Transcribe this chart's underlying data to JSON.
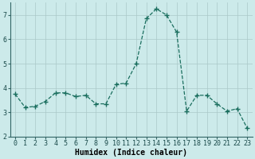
{
  "x": [
    0,
    1,
    2,
    3,
    4,
    5,
    6,
    7,
    8,
    9,
    10,
    11,
    12,
    13,
    14,
    15,
    16,
    17,
    18,
    19,
    20,
    21,
    22,
    23
  ],
  "y": [
    3.75,
    3.2,
    3.25,
    3.45,
    3.8,
    3.8,
    3.65,
    3.7,
    3.35,
    3.35,
    4.15,
    4.2,
    5.0,
    6.85,
    7.25,
    7.0,
    6.3,
    3.05,
    3.7,
    3.7,
    3.35,
    3.05,
    3.15,
    2.35
  ],
  "line_color": "#1a6e5e",
  "marker": "+",
  "marker_size": 4,
  "linewidth": 0.9,
  "background_color": "#cceaea",
  "grid_color": "#aac8c8",
  "xlabel": "Humidex (Indice chaleur)",
  "xlabel_fontsize": 7,
  "ylim": [
    2,
    7.5
  ],
  "xlim": [
    -0.5,
    23.5
  ],
  "yticks": [
    2,
    3,
    4,
    5,
    6,
    7
  ],
  "xticks": [
    0,
    1,
    2,
    3,
    4,
    5,
    6,
    7,
    8,
    9,
    10,
    11,
    12,
    13,
    14,
    15,
    16,
    17,
    18,
    19,
    20,
    21,
    22,
    23
  ],
  "tick_fontsize": 6,
  "spine_color": "#336666"
}
